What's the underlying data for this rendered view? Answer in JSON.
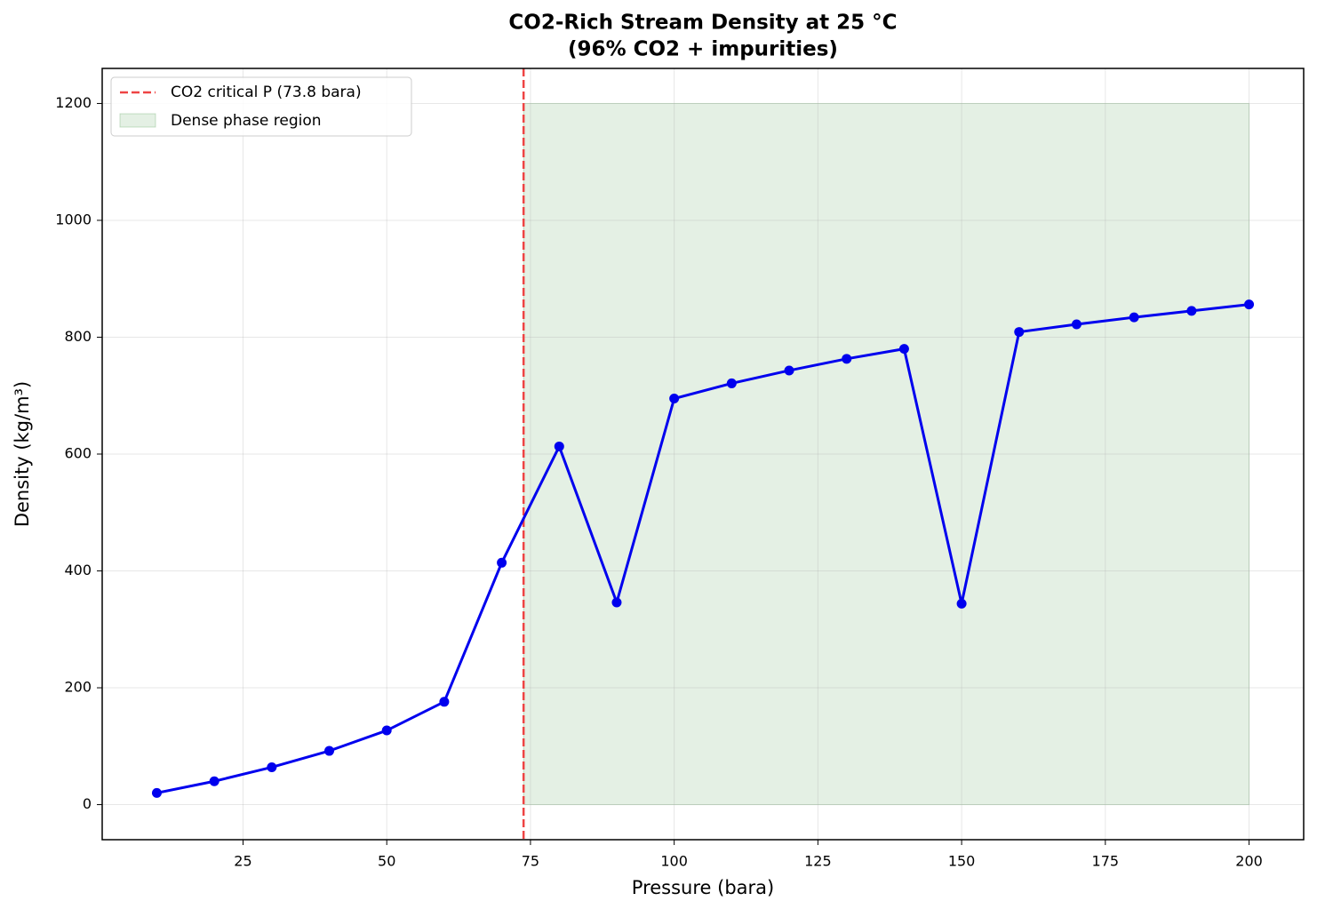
{
  "chart_data": {
    "type": "line",
    "title": "CO2-Rich Stream Density at 25 °C",
    "subtitle": "(96% CO2 + impurities)",
    "xlabel": "Pressure (bara)",
    "ylabel": "Density (kg/m³)",
    "x": [
      10,
      20,
      30,
      40,
      50,
      60,
      70,
      80,
      90,
      100,
      110,
      120,
      130,
      140,
      150,
      160,
      170,
      180,
      190,
      200
    ],
    "values": [
      20,
      40,
      64,
      92,
      127,
      176,
      414,
      613,
      346,
      695,
      721,
      743,
      763,
      780,
      344,
      809,
      822,
      834,
      845,
      856
    ],
    "color": "#0000ee",
    "xlim": [
      0.5,
      209.5
    ],
    "ylim": [
      -60,
      1260
    ],
    "xticks": [
      25,
      50,
      75,
      100,
      125,
      150,
      175,
      200
    ],
    "yticks": [
      0,
      200,
      400,
      600,
      800,
      1000,
      1200
    ],
    "grid": true,
    "legend": "upper left",
    "vline": {
      "x": 73.8,
      "label": "CO2 critical P (73.8 bara)",
      "color": "#ee4444"
    },
    "span": {
      "x": [
        73.8,
        200
      ],
      "y": [
        0,
        1200
      ],
      "label": "Dense phase region",
      "color": "#2e8b2e"
    }
  }
}
